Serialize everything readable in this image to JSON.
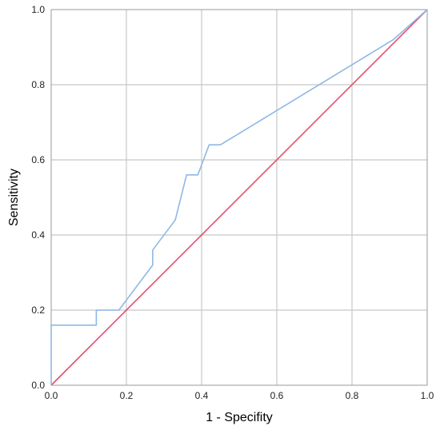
{
  "chart_data": {
    "type": "line",
    "title": "",
    "xlabel": "1 - Specifity",
    "ylabel": "Sensitivity",
    "xlim": [
      0,
      1
    ],
    "ylim": [
      0,
      1
    ],
    "x_ticks": [
      "0.0",
      "0.2",
      "0.4",
      "0.6",
      "0.8",
      "1.0"
    ],
    "y_ticks": [
      "0.0",
      "0.2",
      "0.4",
      "0.6",
      "0.8",
      "1.0"
    ],
    "grid": true,
    "legend": "none",
    "series": [
      {
        "color": "#8DB8E6",
        "x": [
          0.0,
          0.0,
          0.12,
          0.12,
          0.18,
          0.27,
          0.27,
          0.33,
          0.36,
          0.39,
          0.42,
          0.45,
          0.91,
          1.0
        ],
        "y": [
          0.0,
          0.16,
          0.16,
          0.2,
          0.2,
          0.32,
          0.36,
          0.44,
          0.56,
          0.56,
          0.64,
          0.64,
          0.92,
          1.0
        ]
      },
      {
        "color": "#E0506E",
        "x": [
          0.0,
          1.0
        ],
        "y": [
          0.0,
          1.0
        ]
      }
    ]
  }
}
